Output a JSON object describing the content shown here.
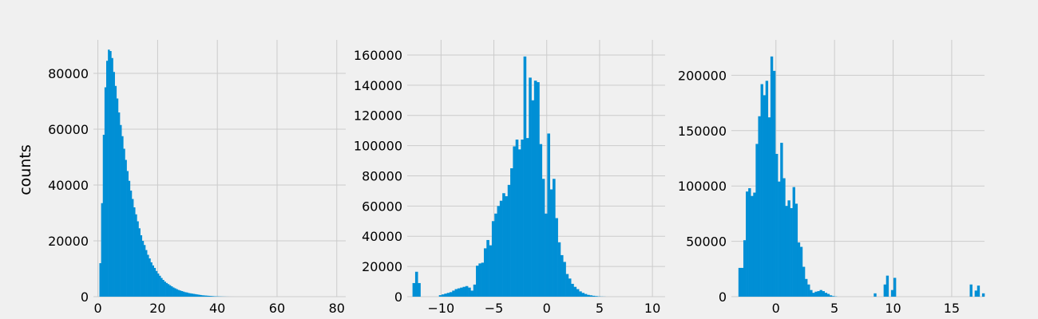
{
  "chart_data": [
    {
      "type": "bar",
      "title": "",
      "xlabel": "",
      "ylabel": "counts",
      "xlim": [
        -1.5,
        83
      ],
      "ylim": [
        0,
        92000
      ],
      "xticks": [
        0,
        20,
        40,
        60,
        80
      ],
      "yticks": [
        0,
        20000,
        40000,
        60000,
        80000
      ],
      "grid": true,
      "bar_color": "#008fd5",
      "bins": {
        "start": 0.5,
        "width": 0.57,
        "values": [
          12000,
          33500,
          58000,
          75000,
          84500,
          88500,
          88000,
          85500,
          80500,
          75500,
          71000,
          66000,
          61500,
          57500,
          53000,
          49000,
          45000,
          41500,
          38000,
          35000,
          32000,
          29500,
          27000,
          24500,
          22000,
          20000,
          18500,
          16700,
          15000,
          13700,
          12300,
          11200,
          10300,
          9200,
          8300,
          7500,
          6700,
          6000,
          5400,
          4900,
          4500,
          4100,
          3700,
          3300,
          3000,
          2700,
          2400,
          2200,
          2000,
          1800,
          1600,
          1500,
          1300,
          1200,
          1100,
          1000,
          900,
          800,
          700,
          600,
          500,
          450,
          400,
          350,
          300,
          250,
          200,
          150,
          120,
          100,
          80,
          60,
          40,
          30,
          20,
          10,
          5,
          3,
          2,
          1
        ]
      }
    },
    {
      "type": "bar",
      "title": "",
      "xlabel": "",
      "ylabel": "",
      "xlim": [
        -13.2,
        11.2
      ],
      "ylim": [
        0,
        170000
      ],
      "xticks": [
        -10,
        -5,
        0,
        5,
        10
      ],
      "yticks": [
        0,
        20000,
        40000,
        60000,
        80000,
        100000,
        120000,
        140000,
        160000
      ],
      "grid": true,
      "bar_color": "#008fd5",
      "bins": {
        "start": -12.7,
        "width": 0.25,
        "values": [
          9000,
          16500,
          9000,
          0,
          0,
          0,
          0,
          0,
          0,
          0,
          1000,
          1500,
          2000,
          2500,
          3000,
          4000,
          5000,
          5500,
          6000,
          6500,
          7000,
          6000,
          4000,
          8000,
          20500,
          22000,
          22500,
          32000,
          37500,
          34000,
          50000,
          55000,
          60000,
          63500,
          68500,
          66500,
          74000,
          85000,
          99500,
          104000,
          97500,
          104000,
          159000,
          105000,
          145000,
          130000,
          143000,
          142000,
          101000,
          78000,
          55000,
          108000,
          71000,
          78000,
          52000,
          36000,
          27500,
          23000,
          15000,
          12000,
          8500,
          6500,
          5000,
          3500,
          2500,
          1800,
          1200,
          900,
          600,
          400,
          200,
          100,
          50,
          0,
          0,
          0,
          0,
          0,
          0,
          0,
          0,
          0,
          0,
          0,
          0,
          0,
          0,
          0,
          0,
          0,
          0,
          0,
          0,
          0
        ]
      }
    },
    {
      "type": "bar",
      "title": "",
      "xlabel": "",
      "ylabel": "",
      "xlim": [
        -3.8,
        17.8
      ],
      "ylim": [
        0,
        232000
      ],
      "xticks": [
        0,
        5,
        10,
        15
      ],
      "yticks": [
        0,
        50000,
        100000,
        150000,
        200000
      ],
      "grid": true,
      "bar_color": "#008fd5",
      "bins": {
        "start": -3.2,
        "width": 0.21,
        "values": [
          26000,
          26000,
          51000,
          95000,
          98000,
          91000,
          94000,
          138000,
          163000,
          192000,
          182000,
          195000,
          162000,
          217000,
          204000,
          129000,
          104000,
          139000,
          107000,
          82000,
          87000,
          80000,
          99000,
          84000,
          49000,
          45000,
          27000,
          16000,
          11000,
          6000,
          3500,
          4500,
          5000,
          6000,
          5000,
          3500,
          2500,
          1200,
          500,
          200,
          0,
          0,
          0,
          0,
          0,
          0,
          0,
          0,
          0,
          0,
          0,
          0,
          0,
          0,
          0,
          3000,
          0,
          0,
          0,
          11000,
          19000,
          0,
          6000,
          17000,
          0,
          0,
          0,
          0,
          0,
          0,
          0,
          0,
          0,
          0,
          0,
          0,
          0,
          0,
          0,
          0,
          0,
          0,
          0,
          0,
          0,
          0,
          0,
          0,
          0,
          0,
          0,
          0,
          0,
          0,
          11000,
          0,
          5500,
          10000,
          0,
          3000,
          0
        ]
      }
    }
  ]
}
